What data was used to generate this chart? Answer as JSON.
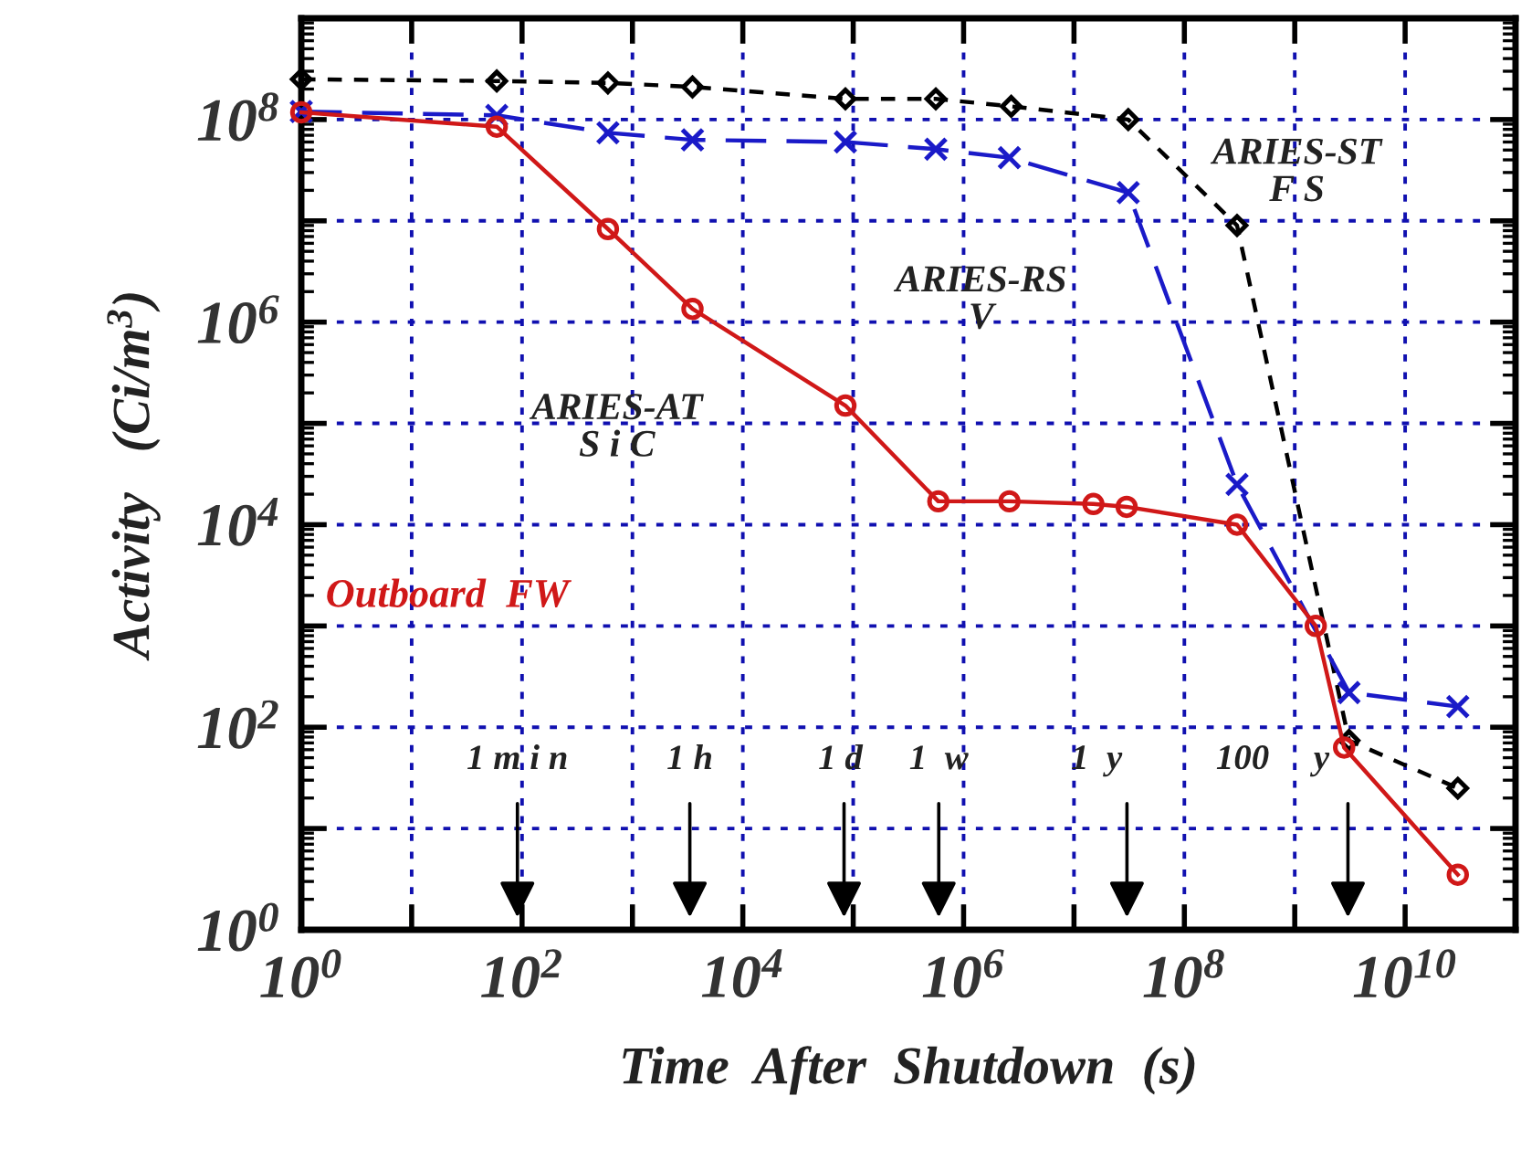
{
  "chart_data": {
    "type": "line",
    "xlabel": "Time  After  Shutdown  (s)",
    "ylabel": "Activity   (Ci/m$^{3}$)",
    "log": "xy",
    "grid": true,
    "xlim": [
      1,
      100000000000
    ],
    "ylim": [
      1,
      1000000000
    ],
    "xticks": [
      {
        "value": 1,
        "label": "10$^{0}$"
      },
      {
        "value": 10,
        "label": null
      },
      {
        "value": 100,
        "label": "10$^{2}$"
      },
      {
        "value": 1000,
        "label": null
      },
      {
        "value": 10000,
        "label": "10$^{4}$"
      },
      {
        "value": 100000,
        "label": null
      },
      {
        "value": 1000000,
        "label": "10$^{6}$"
      },
      {
        "value": 10000000,
        "label": null
      },
      {
        "value": 100000000,
        "label": "10$^{8}$"
      },
      {
        "value": 1000000000,
        "label": null
      },
      {
        "value": 10000000000,
        "label": "10$^{10}$"
      },
      {
        "value": 100000000000,
        "label": null
      }
    ],
    "yticks": [
      {
        "value": 1,
        "label": "10$^{0}$"
      },
      {
        "value": 10,
        "label": null
      },
      {
        "value": 100,
        "label": "10$^{2}$"
      },
      {
        "value": 1000,
        "label": null
      },
      {
        "value": 10000,
        "label": "10$^{4}$"
      },
      {
        "value": 100000,
        "label": null
      },
      {
        "value": 1000000,
        "label": "10$^{6}$"
      },
      {
        "value": 10000000,
        "label": null
      },
      {
        "value": 100000000,
        "label": "10$^{8}$"
      },
      {
        "value": 1000000000,
        "label": null
      }
    ],
    "series": [
      {
        "name": "ARIES-ST\nF S",
        "color": "#000000",
        "marker": "diamond",
        "line_style": "dashed",
        "x": [
          1,
          59,
          600,
          3500,
          85000,
          560000,
          2700000,
          31000000,
          300000000,
          3100000000,
          30000000000
        ],
        "values": [
          250000000,
          240000000,
          230000000,
          210000000,
          160000000,
          160000000,
          135000000,
          100000000,
          9000000,
          74,
          25
        ]
      },
      {
        "name": "ARIES-RS\nV",
        "color": "#1a1ac8",
        "marker": "cross",
        "line_style": "dashed",
        "x": [
          1,
          59,
          600,
          3500,
          85000,
          560000,
          2600000,
          31000000,
          300000000,
          3100000000,
          30000000000
        ],
        "values": [
          120000000,
          110000000,
          74000000,
          63000000,
          60000000,
          51000000,
          42000000,
          19000000,
          25000,
          220,
          160
        ]
      },
      {
        "name": "ARIES-AT\nS i C",
        "color": "#d01818",
        "marker": "circle",
        "line_style": "solid",
        "x": [
          1,
          59,
          600,
          3500,
          85000,
          590000,
          2600000,
          15000000,
          30000000,
          300000000,
          1550000000,
          2800000000,
          30000000000
        ],
        "values": [
          118000000,
          85000000,
          8300000,
          1350000,
          150000,
          17000,
          17000,
          16000,
          15000,
          10000,
          1000,
          63,
          3.5
        ]
      }
    ],
    "annotations": [
      "Outboard  FW",
      "1 m i n",
      "1 h",
      "1 d",
      "1  w",
      "1  y",
      "100     y"
    ]
  }
}
